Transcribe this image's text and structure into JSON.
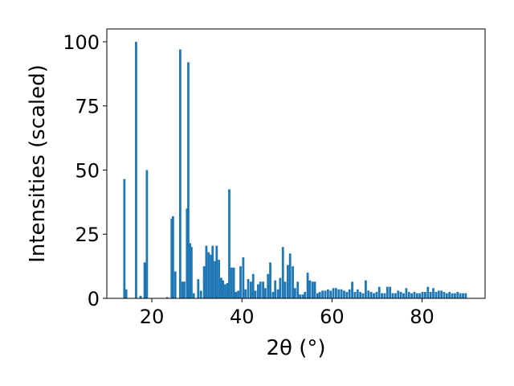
{
  "chart_data": {
    "type": "bar",
    "title": "",
    "xlabel": "2θ (°)",
    "ylabel": "Intensities (scaled)",
    "xlim": [
      10,
      94
    ],
    "ylim": [
      0,
      105
    ],
    "xticks": [
      20,
      40,
      60,
      80
    ],
    "yticks": [
      0,
      25,
      50,
      75,
      100
    ],
    "grid": false,
    "legend": "none",
    "bar_width": 0.5,
    "color": "#1f77b4",
    "x": [
      13.9,
      14.3,
      16.5,
      17.5,
      18.4,
      18.9,
      23.4,
      24.4,
      24.7,
      25.2,
      26.3,
      26.8,
      27.2,
      27.8,
      28.1,
      28.5,
      28.8,
      29.3,
      30.3,
      30.9,
      31.6,
      32.1,
      32.6,
      33.1,
      33.5,
      34.0,
      34.4,
      34.9,
      35.4,
      35.8,
      36.3,
      36.8,
      37.2,
      37.7,
      38.2,
      38.7,
      39.2,
      39.7,
      40.3,
      40.8,
      41.4,
      42.0,
      42.5,
      43.0,
      43.6,
      44.1,
      44.7,
      45.2,
      45.8,
      46.3,
      46.9,
      47.4,
      48.0,
      48.5,
      49.1,
      49.6,
      50.2,
      50.7,
      51.3,
      51.8,
      52.4,
      52.9,
      53.5,
      54.0,
      54.6,
      55.1,
      55.7,
      56.2,
      56.8,
      57.3,
      57.9,
      58.5,
      59.1,
      59.7,
      60.3,
      60.9,
      61.5,
      62.1,
      62.7,
      63.3,
      63.9,
      64.5,
      65.1,
      65.7,
      66.3,
      66.9,
      67.5,
      68.1,
      68.7,
      69.3,
      69.9,
      70.5,
      71.1,
      71.7,
      72.3,
      72.9,
      73.5,
      74.1,
      74.7,
      75.3,
      75.9,
      76.5,
      77.1,
      77.7,
      78.3,
      78.9,
      79.5,
      80.1,
      80.7,
      81.3,
      81.9,
      82.5,
      83.1,
      83.7,
      84.3,
      84.9,
      85.5,
      86.1,
      86.7,
      87.3,
      87.9,
      88.5,
      89.1,
      89.7
    ],
    "values": [
      46.5,
      3.5,
      100,
      1,
      14,
      50,
      0.5,
      31,
      32,
      10.5,
      97,
      6.5,
      6.5,
      35,
      92,
      21.5,
      20,
      2,
      7.5,
      3,
      12.5,
      20.5,
      18,
      17,
      20.5,
      14.5,
      20.5,
      15,
      8,
      7,
      5.5,
      6,
      42.5,
      12,
      12,
      2.5,
      3,
      12.5,
      16,
      3.5,
      7.5,
      6.5,
      9.5,
      3,
      5.5,
      6.5,
      6.5,
      4,
      9.5,
      14,
      2.5,
      7,
      3.5,
      8,
      20,
      6.5,
      13,
      17.5,
      12.5,
      4,
      6.5,
      1.5,
      1.5,
      2.5,
      10,
      7,
      6.5,
      6.5,
      2,
      2.5,
      3,
      3,
      3.5,
      3,
      4,
      4,
      3.5,
      3.5,
      3,
      2.5,
      3.5,
      6.5,
      2.5,
      3.5,
      2.5,
      2,
      7,
      3,
      2.5,
      2,
      2.5,
      4.5,
      2,
      2,
      4.5,
      4.5,
      2,
      2,
      3,
      2.5,
      2,
      4,
      2.5,
      2,
      2.5,
      2,
      2,
      2.5,
      2.5,
      4.5,
      2.5,
      4,
      2.5,
      3,
      3,
      2.5,
      2,
      2.5,
      2,
      2,
      2.5,
      2,
      2,
      2
    ]
  }
}
